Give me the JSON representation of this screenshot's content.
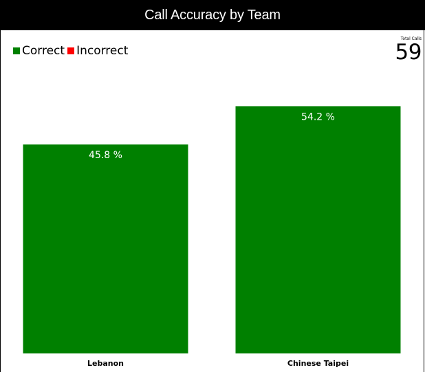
{
  "chart_data": {
    "type": "bar",
    "title": "Call Accuracy by Team",
    "categories": [
      "Lebanon",
      "Chinese Taipei"
    ],
    "series": [
      {
        "name": "Correct",
        "color": "#008000",
        "values": [
          45.8,
          54.2
        ]
      },
      {
        "name": "Incorrect",
        "color": "#ff0000",
        "values": [
          0,
          0
        ]
      }
    ],
    "data_labels": [
      "45.8 %",
      "54.2 %"
    ],
    "ylim": [
      0,
      61.5
    ],
    "xlabel": "",
    "ylabel": "",
    "grid": false,
    "legend_position": "top-left"
  },
  "legend": {
    "correct_label": "Correct",
    "incorrect_label": "Incorrect",
    "correct_color": "#008000",
    "incorrect_color": "#ff0000"
  },
  "total": {
    "label": "Total Calls",
    "value": "59"
  }
}
